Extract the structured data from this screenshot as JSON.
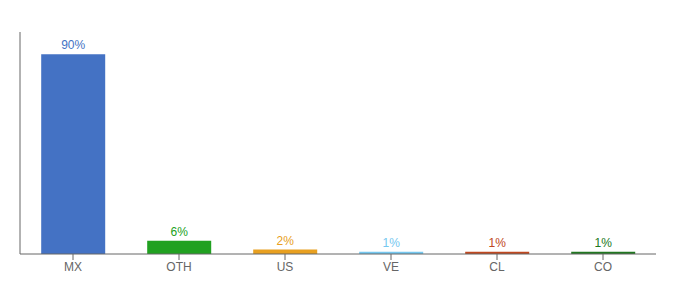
{
  "chart_data": {
    "type": "bar",
    "categories": [
      "MX",
      "OTH",
      "US",
      "VE",
      "CL",
      "CO"
    ],
    "values": [
      90,
      6,
      2,
      1,
      1,
      1
    ],
    "value_labels": [
      "90%",
      "6%",
      "2%",
      "1%",
      "1%",
      "1%"
    ],
    "colors": [
      "#4472C4",
      "#21A121",
      "#E8A020",
      "#75C8F0",
      "#C04820",
      "#217821"
    ],
    "ylim": [
      0,
      100
    ],
    "data_labels": true,
    "tick_labels": "x",
    "grid": false
  }
}
